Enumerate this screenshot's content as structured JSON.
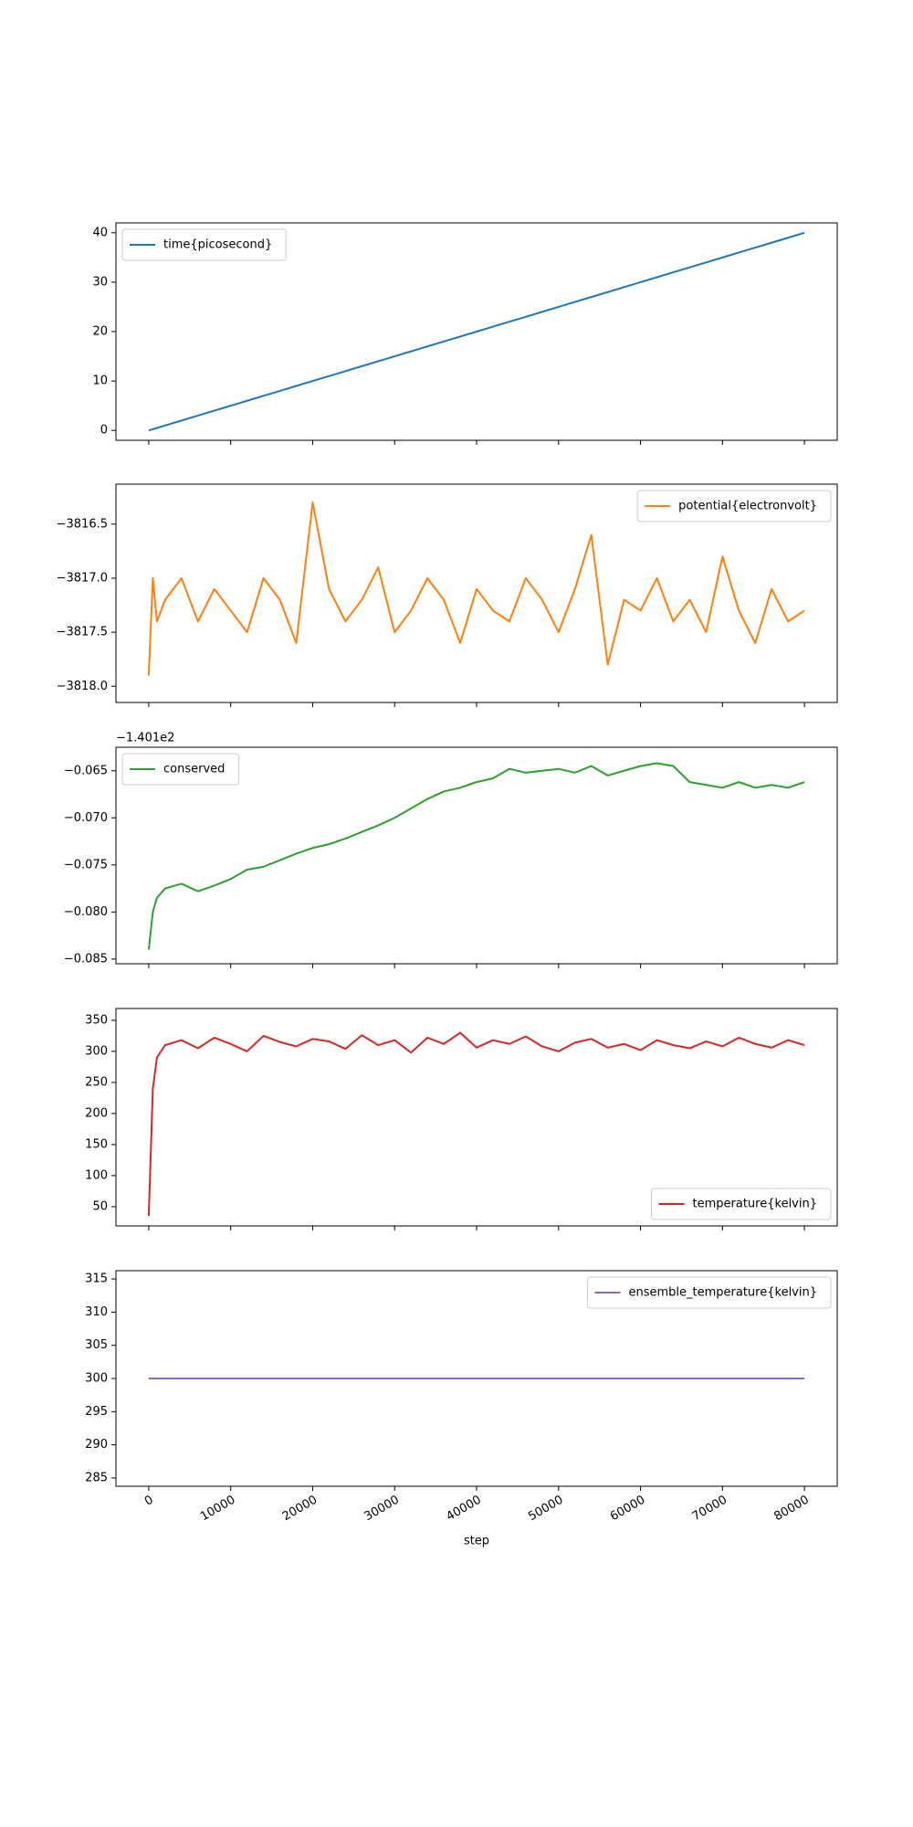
{
  "chart_data": [
    {
      "type": "line",
      "legend": "upper left",
      "show_xtick_labels": false,
      "x": [
        0,
        500,
        1000,
        2000,
        4000,
        6000,
        8000,
        10000,
        12000,
        14000,
        16000,
        18000,
        20000,
        22000,
        24000,
        26000,
        28000,
        30000,
        32000,
        34000,
        36000,
        38000,
        40000,
        42000,
        44000,
        46000,
        48000,
        50000,
        52000,
        54000,
        56000,
        58000,
        60000,
        62000,
        64000,
        66000,
        68000,
        70000,
        72000,
        74000,
        76000,
        78000,
        80000
      ],
      "series": [
        {
          "name": "time{picosecond}",
          "color": "#1f77b4",
          "values": [
            0,
            0.25,
            0.5,
            1,
            2,
            3,
            4,
            5,
            6,
            7,
            8,
            9,
            10,
            11,
            12,
            13,
            14,
            15,
            16,
            17,
            18,
            19,
            20,
            21,
            22,
            23,
            24,
            25,
            26,
            27,
            28,
            29,
            30,
            31,
            32,
            33,
            34,
            35,
            36,
            37,
            38,
            39,
            40
          ]
        }
      ],
      "xlim": [
        -4000,
        84000
      ],
      "xticks": [
        0,
        10000,
        20000,
        30000,
        40000,
        50000,
        60000,
        70000,
        80000
      ],
      "ylim": [
        -2,
        42
      ],
      "yticks": [
        0,
        10,
        20,
        30,
        40
      ]
    },
    {
      "type": "line",
      "legend": "upper right",
      "show_xtick_labels": false,
      "x": [
        0,
        500,
        1000,
        2000,
        4000,
        6000,
        8000,
        10000,
        12000,
        14000,
        16000,
        18000,
        20000,
        22000,
        24000,
        26000,
        28000,
        30000,
        32000,
        34000,
        36000,
        38000,
        40000,
        42000,
        44000,
        46000,
        48000,
        50000,
        52000,
        54000,
        56000,
        58000,
        60000,
        62000,
        64000,
        66000,
        68000,
        70000,
        72000,
        74000,
        76000,
        78000,
        80000
      ],
      "series": [
        {
          "name": "potential{electronvolt}",
          "color": "#ff7f0e",
          "values": [
            -3817.9,
            -3817.0,
            -3817.4,
            -3817.2,
            -3817.0,
            -3817.4,
            -3817.1,
            -3817.3,
            -3817.5,
            -3817.0,
            -3817.2,
            -3817.6,
            -3816.3,
            -3817.1,
            -3817.4,
            -3817.2,
            -3816.9,
            -3817.5,
            -3817.3,
            -3817.0,
            -3817.2,
            -3817.6,
            -3817.1,
            -3817.3,
            -3817.4,
            -3817.0,
            -3817.2,
            -3817.5,
            -3817.1,
            -3816.6,
            -3817.8,
            -3817.2,
            -3817.3,
            -3817.0,
            -3817.4,
            -3817.2,
            -3817.5,
            -3816.8,
            -3817.3,
            -3817.6,
            -3817.1,
            -3817.4,
            -3817.3
          ]
        }
      ],
      "xlim": [
        -4000,
        84000
      ],
      "xticks": [
        0,
        10000,
        20000,
        30000,
        40000,
        50000,
        60000,
        70000,
        80000
      ],
      "ylim": [
        -3818.15,
        -3816.13
      ],
      "yticks": [
        {
          "value": -3816.5,
          "label": "−3816.5"
        },
        {
          "value": -3817,
          "label": "−3817.0"
        },
        {
          "value": -3817.5,
          "label": "−3817.5"
        },
        {
          "value": -3818,
          "label": "−3818.0"
        }
      ]
    },
    {
      "type": "line",
      "legend": "upper left",
      "show_xtick_labels": false,
      "offset_text": "−1.401e2",
      "x": [
        0,
        500,
        1000,
        2000,
        4000,
        6000,
        8000,
        10000,
        12000,
        14000,
        16000,
        18000,
        20000,
        22000,
        24000,
        26000,
        28000,
        30000,
        32000,
        34000,
        36000,
        38000,
        40000,
        42000,
        44000,
        46000,
        48000,
        50000,
        52000,
        54000,
        56000,
        58000,
        60000,
        62000,
        64000,
        66000,
        68000,
        70000,
        72000,
        74000,
        76000,
        78000,
        80000
      ],
      "series": [
        {
          "name": "conserved",
          "color": "#2ca02c",
          "values": [
            -0.084,
            -0.08,
            -0.0785,
            -0.0775,
            -0.077,
            -0.0778,
            -0.0772,
            -0.0765,
            -0.0755,
            -0.0752,
            -0.0745,
            -0.0738,
            -0.0732,
            -0.0728,
            -0.0722,
            -0.0715,
            -0.0708,
            -0.07,
            -0.069,
            -0.068,
            -0.0672,
            -0.0668,
            -0.0662,
            -0.0658,
            -0.0648,
            -0.0652,
            -0.065,
            -0.0648,
            -0.0652,
            -0.0645,
            -0.0655,
            -0.065,
            -0.0645,
            -0.0642,
            -0.0645,
            -0.0662,
            -0.0665,
            -0.0668,
            -0.0662,
            -0.0668,
            -0.0665,
            -0.0668,
            -0.0662
          ]
        }
      ],
      "xlim": [
        -4000,
        84000
      ],
      "xticks": [
        0,
        10000,
        20000,
        30000,
        40000,
        50000,
        60000,
        70000,
        80000
      ],
      "ylim": [
        -0.0855,
        -0.0625
      ],
      "yticks": [
        {
          "value": -0.065,
          "label": "−0.065"
        },
        {
          "value": -0.07,
          "label": "−0.070"
        },
        {
          "value": -0.075,
          "label": "−0.075"
        },
        {
          "value": -0.08,
          "label": "−0.080"
        },
        {
          "value": -0.085,
          "label": "−0.085"
        }
      ]
    },
    {
      "type": "line",
      "legend": "lower right",
      "show_xtick_labels": false,
      "x": [
        0,
        500,
        1000,
        2000,
        4000,
        6000,
        8000,
        10000,
        12000,
        14000,
        16000,
        18000,
        20000,
        22000,
        24000,
        26000,
        28000,
        30000,
        32000,
        34000,
        36000,
        38000,
        40000,
        42000,
        44000,
        46000,
        48000,
        50000,
        52000,
        54000,
        56000,
        58000,
        60000,
        62000,
        64000,
        66000,
        68000,
        70000,
        72000,
        74000,
        76000,
        78000,
        80000
      ],
      "series": [
        {
          "name": "temperature{kelvin}",
          "color": "#d62728",
          "values": [
            35,
            240,
            290,
            310,
            318,
            305,
            322,
            312,
            300,
            325,
            315,
            308,
            320,
            316,
            304,
            326,
            310,
            318,
            298,
            322,
            312,
            330,
            306,
            318,
            312,
            324,
            308,
            300,
            314,
            320,
            306,
            312,
            302,
            318,
            310,
            305,
            316,
            308,
            322,
            312,
            306,
            318,
            310
          ]
        }
      ],
      "xlim": [
        -4000,
        84000
      ],
      "xticks": [
        0,
        10000,
        20000,
        30000,
        40000,
        50000,
        60000,
        70000,
        80000
      ],
      "ylim": [
        19,
        369
      ],
      "yticks": [
        50,
        100,
        150,
        200,
        250,
        300,
        350
      ]
    },
    {
      "type": "line",
      "legend": "upper right",
      "show_xtick_labels": true,
      "xlabel": "step",
      "x": [
        0,
        500,
        1000,
        2000,
        4000,
        6000,
        8000,
        10000,
        12000,
        14000,
        16000,
        18000,
        20000,
        22000,
        24000,
        26000,
        28000,
        30000,
        32000,
        34000,
        36000,
        38000,
        40000,
        42000,
        44000,
        46000,
        48000,
        50000,
        52000,
        54000,
        56000,
        58000,
        60000,
        62000,
        64000,
        66000,
        68000,
        70000,
        72000,
        74000,
        76000,
        78000,
        80000
      ],
      "series": [
        {
          "name": "ensemble_temperature{kelvin}",
          "color": "#9467bd",
          "values": [
            300,
            300,
            300,
            300,
            300,
            300,
            300,
            300,
            300,
            300,
            300,
            300,
            300,
            300,
            300,
            300,
            300,
            300,
            300,
            300,
            300,
            300,
            300,
            300,
            300,
            300,
            300,
            300,
            300,
            300,
            300,
            300,
            300,
            300,
            300,
            300,
            300,
            300,
            300,
            300,
            300,
            300,
            300
          ]
        }
      ],
      "xlim": [
        -4000,
        84000
      ],
      "xticks": [
        0,
        10000,
        20000,
        30000,
        40000,
        50000,
        60000,
        70000,
        80000
      ],
      "ylim": [
        283.75,
        316.25
      ],
      "yticks": [
        285,
        290,
        295,
        300,
        305,
        310,
        315
      ]
    }
  ]
}
